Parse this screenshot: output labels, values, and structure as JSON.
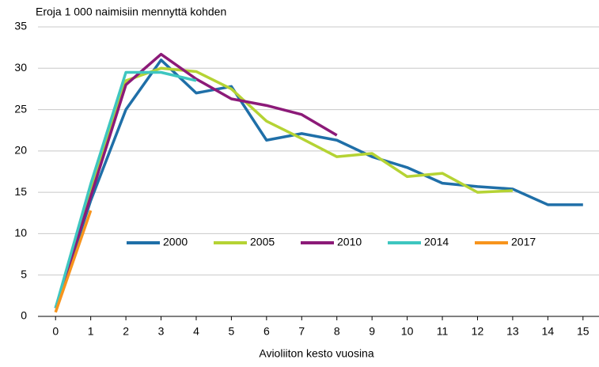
{
  "chart_data": {
    "type": "line",
    "title": "Eroja 1 000 naimisiin mennyttä kohden",
    "x_label": "Avioliiton kesto vuosina",
    "x": [
      0,
      1,
      2,
      3,
      4,
      5,
      6,
      7,
      8,
      9,
      10,
      11,
      12,
      13,
      14,
      15
    ],
    "xlim": [
      -0.5,
      15.5
    ],
    "xticks": [
      0,
      1,
      2,
      3,
      4,
      5,
      6,
      7,
      8,
      9,
      10,
      11,
      12,
      13,
      14,
      15
    ],
    "ylim": [
      0,
      35
    ],
    "yticks": [
      0,
      5,
      10,
      15,
      20,
      25,
      30,
      35
    ],
    "grid": true,
    "legend": "center",
    "series": [
      {
        "name": "2000",
        "color": "#1f6fa8",
        "values": [
          1,
          14,
          25,
          31,
          27,
          27.8,
          21.3,
          22.1,
          21.3,
          19.3,
          18,
          16.1,
          15.7,
          15.4,
          13.5,
          13.5
        ]
      },
      {
        "name": "2005",
        "color": "#b5d334",
        "values": [
          1,
          15,
          28.5,
          30,
          29.6,
          27.5,
          23.6,
          21.5,
          19.3,
          19.7,
          16.9,
          17.3,
          15,
          15.2,
          null,
          null
        ]
      },
      {
        "name": "2010",
        "color": "#8c1a78",
        "values": [
          1,
          14.5,
          28,
          31.7,
          28.7,
          26.3,
          25.5,
          24.4,
          21.9,
          null,
          null,
          null,
          null,
          null,
          null,
          null
        ]
      },
      {
        "name": "2014",
        "color": "#3ec6c0",
        "values": [
          1,
          16,
          29.5,
          29.5,
          28.5,
          null,
          null,
          null,
          null,
          null,
          null,
          null,
          null,
          null,
          null,
          null
        ]
      },
      {
        "name": "2017",
        "color": "#f7941d",
        "values": [
          0.5,
          12.8,
          null,
          null,
          null,
          null,
          null,
          null,
          null,
          null,
          null,
          null,
          null,
          null,
          null,
          null
        ]
      }
    ]
  }
}
